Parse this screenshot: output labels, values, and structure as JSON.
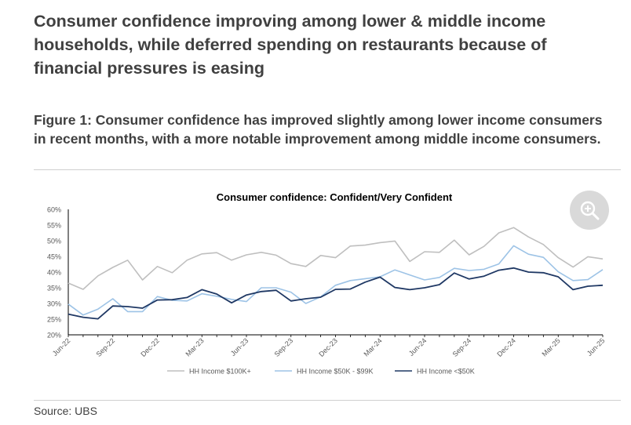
{
  "headline": "Consumer confidence improving among lower & middle income households, while deferred spending on restaurants because of financial pressures is easing",
  "figure_title": "Figure 1: Consumer confidence has improved slightly among lower income consumers in recent months, with a more notable improvement among middle income consumers.",
  "source": "Source: UBS",
  "zoom_icon": "zoom-in-icon",
  "colors": {
    "hh_100k": "#bfbfbf",
    "hh_50_99k": "#9dc3e6",
    "hh_under_50k": "#1f3864",
    "axis": "#000000",
    "tick_text": "#595959",
    "zoom_bg": "#d9d9d9"
  },
  "chart_data": {
    "type": "line",
    "title": "Consumer confidence: Confident/Very Confident",
    "xlabel": "",
    "ylabel": "",
    "ylim": [
      20,
      60
    ],
    "yticks": [
      "20%",
      "25%",
      "30%",
      "35%",
      "40%",
      "45%",
      "50%",
      "55%",
      "60%"
    ],
    "ytick_values": [
      20,
      25,
      30,
      35,
      40,
      45,
      50,
      55,
      60
    ],
    "x": [
      "Jun-22",
      "Jul-22",
      "Aug-22",
      "Sep-22",
      "Oct-22",
      "Nov-22",
      "Dec-22",
      "Jan-23",
      "Feb-23",
      "Mar-23",
      "Apr-23",
      "May-23",
      "Jun-23",
      "Jul-23",
      "Aug-23",
      "Sep-23",
      "Oct-23",
      "Nov-23",
      "Dec-23",
      "Jan-24",
      "Feb-24",
      "Mar-24",
      "Apr-24",
      "May-24",
      "Jun-24",
      "Jul-24",
      "Aug-24",
      "Sep-24",
      "Oct-24",
      "Nov-24",
      "Dec-24",
      "Jan-25",
      "Feb-25",
      "Mar-25",
      "Apr-25",
      "May-25",
      "Jun-25"
    ],
    "xtick_labels": [
      "Jun-22",
      "Sep-22",
      "Dec-22",
      "Mar-23",
      "Jun-23",
      "Sep-23",
      "Dec-23",
      "Mar-24",
      "Jun-24",
      "Sep-24",
      "Dec-24",
      "Mar-25",
      "Jun-25"
    ],
    "xtick_indices": [
      0,
      3,
      6,
      9,
      12,
      15,
      18,
      21,
      24,
      27,
      30,
      33,
      36
    ],
    "grid": false,
    "legend": "bottom",
    "series": [
      {
        "name": "HH Income $100K+",
        "values": [
          36.5,
          34.5,
          38.8,
          41.5,
          43.8,
          37.5,
          41.8,
          39.8,
          43.8,
          45.8,
          46.2,
          43.8,
          45.5,
          46.3,
          45.4,
          42.7,
          41.8,
          45.3,
          44.6,
          48.3,
          48.6,
          49.4,
          49.9,
          43.4,
          46.5,
          46.3,
          50.2,
          45.5,
          48.2,
          52.5,
          54.2,
          51.2,
          48.8,
          44.6,
          41.6,
          44.9,
          44.2
        ]
      },
      {
        "name": "HH Income $50K - $99K",
        "values": [
          29.8,
          26.3,
          28.2,
          31.5,
          27.4,
          27.4,
          32.2,
          31.0,
          30.8,
          33.1,
          32.3,
          31.3,
          30.6,
          35.0,
          35.0,
          33.6,
          30.0,
          32.1,
          35.8,
          37.3,
          37.9,
          38.5,
          40.7,
          39.1,
          37.5,
          38.3,
          41.2,
          40.5,
          40.9,
          42.6,
          48.4,
          45.7,
          44.7,
          40.1,
          37.3,
          37.6,
          40.8
        ]
      },
      {
        "name": "HH Income <$50K",
        "values": [
          26.6,
          25.6,
          25.1,
          29.2,
          29.0,
          28.5,
          31.1,
          31.2,
          31.9,
          34.4,
          33.0,
          30.2,
          32.7,
          33.8,
          34.2,
          30.8,
          31.5,
          32.0,
          34.5,
          34.6,
          36.8,
          38.4,
          35.1,
          34.4,
          35.0,
          36.0,
          39.7,
          37.8,
          38.7,
          40.6,
          41.3,
          40.0,
          39.8,
          38.5,
          34.4,
          35.5,
          35.8
        ]
      }
    ]
  }
}
